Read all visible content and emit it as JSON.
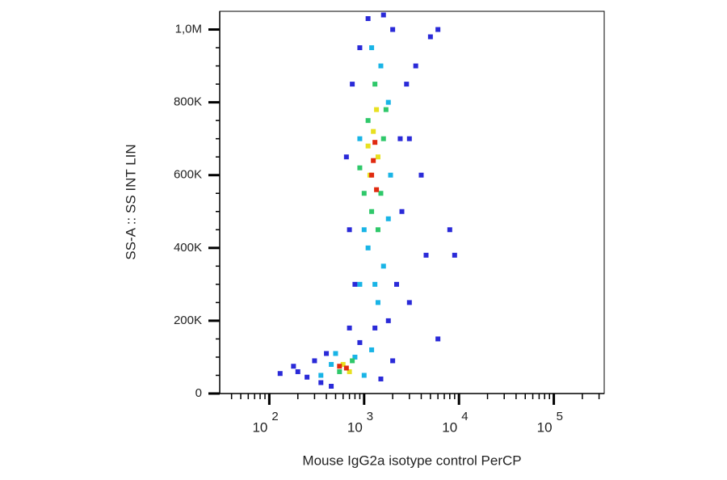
{
  "chart_data": {
    "type": "scatter",
    "x_label": "Mouse IgG2a isotype control PerCP",
    "y_label": "SS-A :: SS INT LIN",
    "xscale": "log",
    "xlim": [
      30,
      340000
    ],
    "ylim": [
      0,
      1050000
    ],
    "xticks": [
      {
        "value": 100,
        "label": "10",
        "sup": "2"
      },
      {
        "value": 1000,
        "label": "10",
        "sup": "3"
      },
      {
        "value": 10000,
        "label": "10",
        "sup": "4"
      },
      {
        "value": 100000,
        "label": "10",
        "sup": "5"
      }
    ],
    "xminorticks": [
      40,
      50,
      60,
      70,
      80,
      90,
      200,
      300,
      400,
      500,
      600,
      700,
      800,
      900,
      2000,
      3000,
      4000,
      5000,
      6000,
      7000,
      8000,
      9000,
      20000,
      30000,
      40000,
      50000,
      60000,
      70000,
      80000,
      90000,
      200000,
      300000
    ],
    "yticks": [
      0,
      {
        "value": 200000,
        "label": "200K"
      },
      {
        "value": 400000,
        "label": "400K"
      },
      {
        "value": 600000,
        "label": "600K"
      },
      {
        "value": 800000,
        "label": "800K"
      },
      {
        "value": 1000000,
        "label": "1,0M"
      }
    ],
    "yminorticks": [
      50000,
      100000,
      150000,
      250000,
      300000,
      350000,
      450000,
      500000,
      550000,
      650000,
      700000,
      750000,
      850000,
      900000,
      950000
    ],
    "series": [
      {
        "color": "#2a2ad8",
        "x": [
          200,
          250,
          300,
          350,
          180,
          400,
          900,
          1500,
          2000,
          130,
          450,
          800,
          700,
          650,
          750,
          900,
          2200,
          2500,
          3000,
          3500,
          1800,
          2000,
          5000,
          4000,
          6000,
          8000,
          9000,
          3000,
          1100,
          1600,
          700,
          2800,
          1300,
          2400,
          6000,
          4500
        ],
        "y": [
          60000,
          45000,
          90000,
          30000,
          75000,
          110000,
          140000,
          40000,
          90000,
          55000,
          20000,
          300000,
          450000,
          650000,
          850000,
          950000,
          300000,
          500000,
          700000,
          900000,
          200000,
          1000000,
          980000,
          600000,
          150000,
          450000,
          380000,
          250000,
          1030000,
          1040000,
          180000,
          850000,
          180000,
          700000,
          1000000,
          380000
        ]
      },
      {
        "color": "#19b4e6",
        "x": [
          350,
          450,
          800,
          1000,
          900,
          1600,
          1400,
          1000,
          1800,
          900,
          1800,
          1500,
          1200,
          1900,
          1100,
          1300,
          500,
          1200
        ],
        "y": [
          50000,
          80000,
          100000,
          50000,
          300000,
          350000,
          250000,
          450000,
          480000,
          700000,
          800000,
          900000,
          950000,
          600000,
          400000,
          300000,
          110000,
          120000
        ]
      },
      {
        "color": "#2fc86a",
        "x": [
          550,
          750,
          1000,
          1500,
          1100,
          1600,
          1300,
          1400,
          1200,
          1700,
          900
        ],
        "y": [
          60000,
          90000,
          550000,
          550000,
          750000,
          700000,
          850000,
          450000,
          500000,
          780000,
          620000
        ]
      },
      {
        "color": "#e8e020",
        "x": [
          600,
          700,
          1150,
          1400,
          1250,
          1350,
          1100
        ],
        "y": [
          80000,
          60000,
          600000,
          650000,
          720000,
          780000,
          680000
        ]
      },
      {
        "color": "#e02a10",
        "x": [
          650,
          550,
          1250,
          1300,
          1200,
          1350
        ],
        "y": [
          70000,
          75000,
          640000,
          690000,
          600000,
          560000
        ]
      }
    ]
  }
}
